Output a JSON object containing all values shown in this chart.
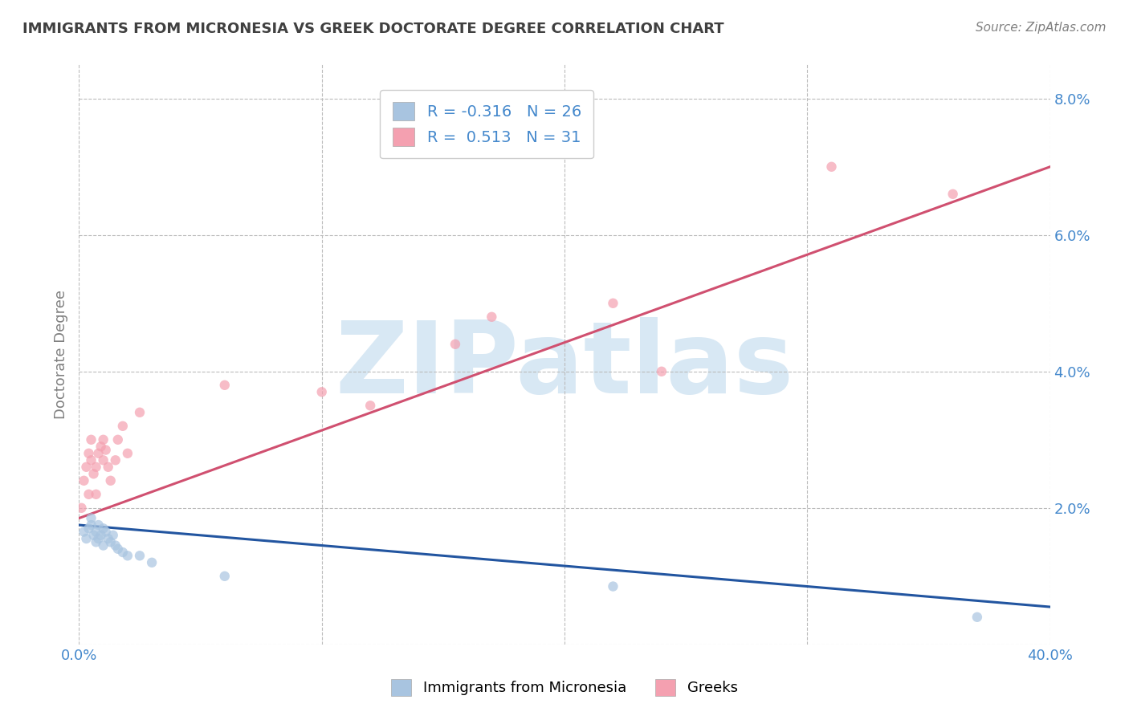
{
  "title": "IMMIGRANTS FROM MICRONESIA VS GREEK DOCTORATE DEGREE CORRELATION CHART",
  "source": "Source: ZipAtlas.com",
  "ylabel": "Doctorate Degree",
  "xlim": [
    0.0,
    0.4
  ],
  "ylim": [
    0.0,
    0.085
  ],
  "x_ticks": [
    0.0,
    0.1,
    0.2,
    0.3,
    0.4
  ],
  "x_tick_labels": [
    "0.0%",
    "",
    "",
    "",
    "40.0%"
  ],
  "y_ticks": [
    0.0,
    0.02,
    0.04,
    0.06,
    0.08
  ],
  "y_tick_labels": [
    "",
    "2.0%",
    "4.0%",
    "6.0%",
    "8.0%"
  ],
  "legend_r_blue": "R = -0.316",
  "legend_n_blue": "N = 26",
  "legend_r_pink": "R =  0.513",
  "legend_n_pink": "N = 31",
  "blue_color": "#a8c4e0",
  "pink_color": "#f4a0b0",
  "blue_line_color": "#2255a0",
  "pink_line_color": "#d05070",
  "watermark_text": "ZIPatlas",
  "blue_scatter_x": [
    0.002,
    0.003,
    0.004,
    0.005,
    0.005,
    0.006,
    0.007,
    0.007,
    0.008,
    0.008,
    0.009,
    0.01,
    0.01,
    0.011,
    0.012,
    0.013,
    0.014,
    0.015,
    0.016,
    0.018,
    0.02,
    0.025,
    0.03,
    0.06,
    0.22,
    0.37
  ],
  "blue_scatter_y": [
    0.0165,
    0.0155,
    0.017,
    0.0175,
    0.0185,
    0.016,
    0.015,
    0.0165,
    0.0155,
    0.0175,
    0.016,
    0.017,
    0.0145,
    0.0165,
    0.0155,
    0.015,
    0.016,
    0.0145,
    0.014,
    0.0135,
    0.013,
    0.013,
    0.012,
    0.01,
    0.0085,
    0.004
  ],
  "pink_scatter_x": [
    0.001,
    0.002,
    0.003,
    0.004,
    0.004,
    0.005,
    0.005,
    0.006,
    0.007,
    0.007,
    0.008,
    0.009,
    0.01,
    0.01,
    0.011,
    0.012,
    0.013,
    0.015,
    0.016,
    0.018,
    0.02,
    0.025,
    0.06,
    0.1,
    0.12,
    0.155,
    0.17,
    0.22,
    0.24,
    0.31,
    0.36
  ],
  "pink_scatter_y": [
    0.02,
    0.024,
    0.026,
    0.022,
    0.028,
    0.027,
    0.03,
    0.025,
    0.022,
    0.026,
    0.028,
    0.029,
    0.027,
    0.03,
    0.0285,
    0.026,
    0.024,
    0.027,
    0.03,
    0.032,
    0.028,
    0.034,
    0.038,
    0.037,
    0.035,
    0.044,
    0.048,
    0.05,
    0.04,
    0.07,
    0.066
  ],
  "blue_line_x": [
    0.0,
    0.4
  ],
  "blue_line_y": [
    0.0175,
    0.0055
  ],
  "pink_line_x": [
    0.0,
    0.4
  ],
  "pink_line_y": [
    0.0185,
    0.07
  ],
  "grid_color": "#bbbbbb",
  "background_color": "#ffffff",
  "title_color": "#404040",
  "axis_label_color": "#808080",
  "tick_label_color": "#4488cc",
  "legend_text_color": "#4488cc",
  "watermark_color": "#d8e8f4",
  "scatter_size": 80,
  "scatter_alpha": 0.7
}
